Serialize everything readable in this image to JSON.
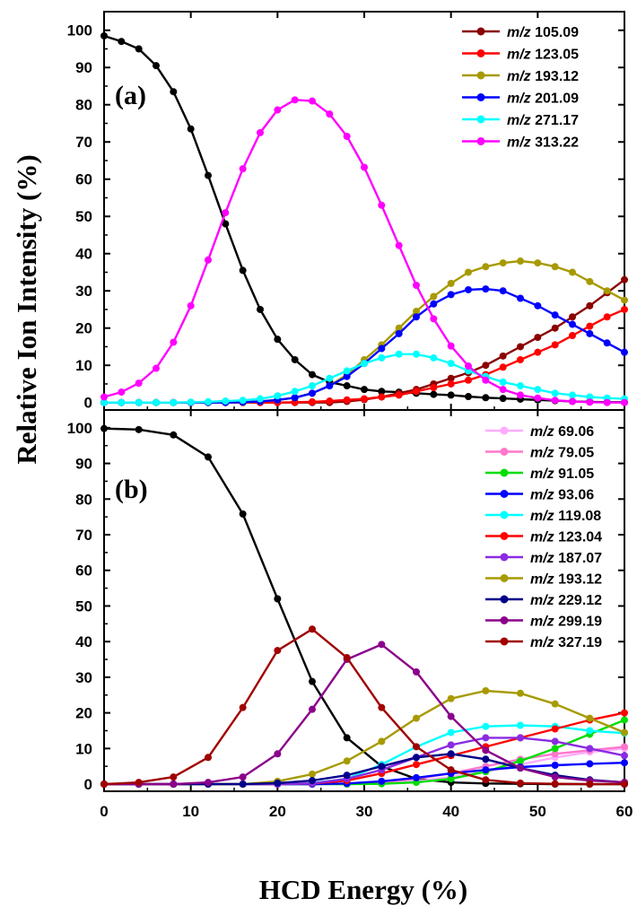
{
  "figure": {
    "ylabel": "Relative Ion Intensity (%)",
    "xlabel": "HCD Energy (%)"
  },
  "chart_data": [
    {
      "type": "line",
      "panel_label": "(a)",
      "xlim": [
        0,
        60
      ],
      "ylim": [
        -2,
        105
      ],
      "x_ticks": [
        0,
        10,
        20,
        30,
        40,
        50,
        60
      ],
      "y_ticks": [
        0,
        10,
        20,
        30,
        40,
        50,
        60,
        70,
        80,
        90,
        100
      ],
      "x_tick_labels": [
        "0",
        "10",
        "20",
        "30",
        "40",
        "50",
        "60"
      ],
      "y_tick_labels": [
        "0",
        "10",
        "20",
        "30",
        "40",
        "50",
        "60",
        "70",
        "80",
        "90",
        "100"
      ],
      "x": [
        0,
        2,
        4,
        6,
        8,
        10,
        12,
        14,
        16,
        18,
        20,
        22,
        24,
        26,
        28,
        30,
        32,
        34,
        36,
        38,
        40,
        42,
        44,
        46,
        48,
        50,
        52,
        54,
        56,
        58,
        60
      ],
      "legend_position": "top-right",
      "legend_prefix": "m/z",
      "series": [
        {
          "legend": "",
          "color": "#000000",
          "values": [
            98.5,
            97,
            95,
            90.5,
            83.5,
            73.5,
            61,
            48,
            35.5,
            25,
            17,
            11.5,
            7.5,
            5.5,
            4.5,
            3.5,
            3,
            2.8,
            2.5,
            2.2,
            2,
            1.6,
            1.3,
            1.1,
            0.9,
            0.7,
            0.5,
            0.3,
            0.2,
            0.1,
            0.1
          ]
        },
        {
          "legend": "105.09",
          "color": "#8B0000",
          "values": [
            0,
            0,
            0,
            0,
            0,
            0,
            0,
            0,
            0,
            0,
            0,
            0,
            0,
            0,
            0.3,
            0.8,
            1.5,
            2.5,
            3.5,
            5,
            6.5,
            8,
            10,
            12.5,
            15,
            17.5,
            20,
            23,
            26,
            29.5,
            33
          ]
        },
        {
          "legend": "123.05",
          "color": "#FF0000",
          "values": [
            0,
            0,
            0,
            0,
            0,
            0,
            0,
            0,
            0,
            0,
            0,
            0.1,
            0.2,
            0.4,
            0.7,
            1,
            1.5,
            2,
            3,
            4,
            5,
            6,
            7.5,
            9.5,
            11.5,
            13.5,
            15.5,
            18,
            20.5,
            23,
            25
          ]
        },
        {
          "legend": "193.12",
          "color": "#A79A00",
          "values": [
            0,
            0,
            0,
            0,
            0,
            0,
            0,
            0,
            0.1,
            0.3,
            0.7,
            1.3,
            2.5,
            4.5,
            7.5,
            11.5,
            15.5,
            20,
            24.5,
            28.5,
            32,
            35,
            36.5,
            37.5,
            38,
            37.5,
            36.5,
            35,
            32.5,
            30,
            27.5
          ]
        },
        {
          "legend": "201.09",
          "color": "#0000FF",
          "values": [
            0,
            0,
            0,
            0,
            0,
            0,
            0,
            0,
            0.1,
            0.3,
            0.7,
            1.3,
            2.5,
            4.5,
            7,
            10.5,
            14.5,
            18.5,
            23,
            26.5,
            29,
            30.3,
            30.5,
            30,
            28,
            26,
            23.5,
            21,
            18.5,
            16,
            13.5
          ]
        },
        {
          "legend": "271.17",
          "color": "#00FFFF",
          "values": [
            0,
            0,
            0,
            0,
            0,
            0.1,
            0.2,
            0.4,
            0.6,
            1,
            1.8,
            3,
            4.5,
            6.5,
            8.5,
            10.5,
            12,
            13,
            13,
            12,
            10.5,
            8.5,
            7,
            5.5,
            4.5,
            3.5,
            2.5,
            2,
            1.5,
            1.2,
            1
          ]
        },
        {
          "legend": "313.22",
          "color": "#FF00FF",
          "values": [
            1.5,
            2.8,
            5.2,
            9.2,
            16.2,
            26,
            38.3,
            51,
            62.8,
            72.5,
            78.6,
            81.3,
            81,
            77.5,
            71.5,
            63.2,
            53,
            42.2,
            31.5,
            22.5,
            15.2,
            9.8,
            6,
            3.5,
            2,
            1.2,
            0.6,
            0.3,
            0.1,
            0,
            0
          ]
        }
      ]
    },
    {
      "type": "line",
      "panel_label": "(b)",
      "xlim": [
        0,
        60
      ],
      "ylim": [
        -2,
        105
      ],
      "x_ticks": [
        0,
        10,
        20,
        30,
        40,
        50,
        60
      ],
      "y_ticks": [
        0,
        10,
        20,
        30,
        40,
        50,
        60,
        70,
        80,
        90,
        100
      ],
      "x_tick_labels": [
        "0",
        "10",
        "20",
        "30",
        "40",
        "50",
        "60"
      ],
      "y_tick_labels": [
        "0",
        "10",
        "20",
        "30",
        "40",
        "50",
        "60",
        "70",
        "80",
        "90",
        "100"
      ],
      "x": [
        0,
        4,
        8,
        12,
        16,
        20,
        24,
        28,
        32,
        36,
        40,
        44,
        48,
        52,
        56,
        60
      ],
      "legend_position": "top-right",
      "legend_prefix": "m/z",
      "series": [
        {
          "legend": "",
          "color": "#000000",
          "values": [
            99.8,
            99.5,
            98,
            91.8,
            75.8,
            52,
            28.8,
            13,
            5,
            1.5,
            0.5,
            0.2,
            0.1,
            0,
            0,
            0
          ]
        },
        {
          "legend": "69.06",
          "color": "#FFAAFF",
          "values": [
            0,
            0,
            0,
            0,
            0,
            0,
            0,
            0,
            0.2,
            0.8,
            2,
            3.5,
            5.5,
            7.5,
            9,
            10
          ]
        },
        {
          "legend": "79.05",
          "color": "#FF77CC",
          "values": [
            0,
            0,
            0,
            0,
            0,
            0,
            0,
            0.1,
            0.5,
            1.5,
            3,
            5,
            7,
            8.5,
            9.5,
            10.5
          ]
        },
        {
          "legend": "91.05",
          "color": "#00DD00",
          "values": [
            0,
            0,
            0,
            0,
            0,
            0,
            0,
            0,
            0.1,
            0.5,
            1.5,
            3.5,
            6.5,
            10,
            14,
            18
          ]
        },
        {
          "legend": "93.06",
          "color": "#0000FF",
          "values": [
            0,
            0,
            0,
            0,
            0,
            0,
            0,
            0.2,
            0.8,
            1.8,
            3,
            4,
            4.8,
            5.3,
            5.7,
            6
          ]
        },
        {
          "legend": "119.08",
          "color": "#00FFFF",
          "values": [
            0,
            0,
            0,
            0,
            0,
            0,
            0.3,
            1.5,
            5.5,
            10.5,
            14.5,
            16.2,
            16.5,
            16.2,
            15,
            14.3
          ]
        },
        {
          "legend": "123.04",
          "color": "#FF0000",
          "values": [
            0,
            0,
            0,
            0,
            0,
            0,
            0.2,
            1,
            3,
            5.5,
            8,
            10.5,
            13,
            15.5,
            18,
            20
          ]
        },
        {
          "legend": "187.07",
          "color": "#8A2BE2",
          "values": [
            0,
            0,
            0,
            0,
            0,
            0,
            0.2,
            1.5,
            4,
            7.5,
            11,
            13,
            13,
            12,
            10,
            8
          ]
        },
        {
          "legend": "193.12",
          "color": "#A79A00",
          "values": [
            0,
            0,
            0,
            0,
            0,
            0.8,
            2.8,
            6.5,
            12,
            18.5,
            24,
            26.2,
            25.5,
            22.5,
            18.5,
            14.5
          ]
        },
        {
          "legend": "229.12",
          "color": "#00008B",
          "values": [
            0,
            0,
            0,
            0,
            0,
            0.3,
            1,
            2.5,
            5,
            7.5,
            8.5,
            7,
            4.5,
            2.5,
            1.2,
            0.5
          ]
        },
        {
          "legend": "299.19",
          "color": "#8B008B",
          "values": [
            0,
            0,
            0,
            0.5,
            2,
            8.5,
            21,
            35,
            39.2,
            31.5,
            19,
            9.5,
            4.5,
            2,
            1,
            0.5
          ]
        },
        {
          "legend": "327.19",
          "color": "#A00000",
          "values": [
            0,
            0.5,
            2,
            7.5,
            21.5,
            37.5,
            43.5,
            35.5,
            21.5,
            10.5,
            4,
            1.2,
            0.3,
            0.1,
            0,
            0
          ]
        }
      ]
    }
  ]
}
